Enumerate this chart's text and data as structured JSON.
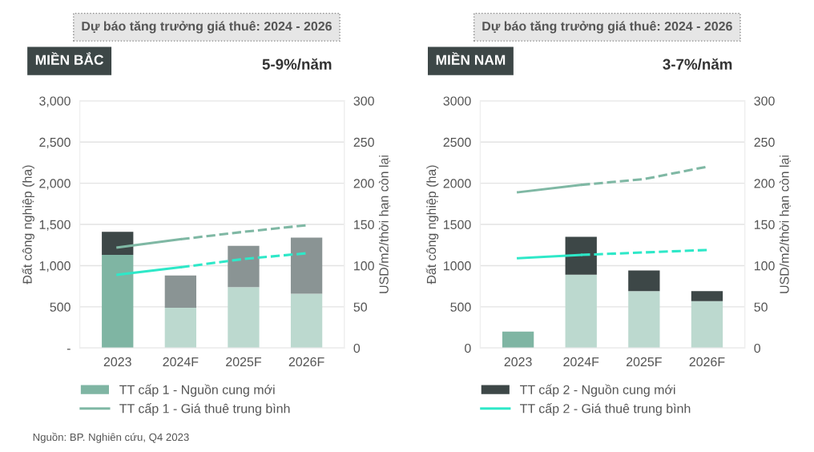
{
  "chart_data": [
    {
      "type": "bar",
      "title": "MIỀN BẮC",
      "stacked": true,
      "ylabel": "Đất công nghiệp (ha)",
      "y2label": "USD/m2/thời hạn còn lại",
      "annotations": [
        "Dự báo tăng trưởng giá thuê: 2024 - 2026",
        "5-9%/năm",
        "Nguồn: BP. Nghiên cứu, Q4 2023"
      ],
      "categories": [
        "2023",
        "2024F",
        "2025F",
        "2026F"
      ],
      "series": [
        {
          "name": "TT cấp 1 - Nguồn cung mới",
          "colors": [
            "#7fb5a3",
            "#bcd9cf",
            "#bcd9cf",
            "#bcd9cf"
          ],
          "values": [
            1130,
            490,
            740,
            660
          ]
        },
        {
          "colors": [
            "#3d4747",
            "#8a9494",
            "#8a9494",
            "#8a9494"
          ],
          "values": [
            280,
            390,
            500,
            680
          ]
        },
        {
          "type": "line",
          "axis": "y2",
          "name": "TT cấp 1 - Giá thuê trung bình",
          "color": "#7fb8a4",
          "line_style": "solid",
          "values": [
            122,
            132,
            null,
            null
          ]
        },
        {
          "type": "line",
          "axis": "y2",
          "color": "#7fb8a4",
          "line_style": "dashed",
          "values": [
            null,
            132,
            141,
            149
          ]
        },
        {
          "type": "line",
          "axis": "y2",
          "color": "#2ee8c8",
          "line_style": "solid",
          "values": [
            89,
            98,
            null,
            null
          ]
        },
        {
          "type": "line",
          "axis": "y2",
          "color": "#2ee8c8",
          "line_style": "dashed",
          "values": [
            null,
            98,
            108,
            115
          ]
        }
      ],
      "ylim": [
        0,
        3000
      ],
      "yticks": [
        {
          "value": 0,
          "label": "-"
        },
        500,
        {
          "value": 1000,
          "label": "1,000"
        },
        {
          "value": 1500,
          "label": "1,500"
        },
        {
          "value": 2000,
          "label": "2,000"
        },
        {
          "value": 2500,
          "label": "2,500"
        },
        {
          "value": 3000,
          "label": "3,000"
        }
      ],
      "y2lim": [
        0,
        300
      ],
      "y2ticks": [
        0,
        50,
        100,
        150,
        200,
        250,
        300
      ],
      "grid": "y",
      "legend": "bottom"
    },
    {
      "type": "bar",
      "title": "MIỀN NAM",
      "stacked": true,
      "ylabel": "Đất công nghiệp (ha)",
      "y2label": "USD/m2/thời hạn còn lại",
      "annotations": [
        "Dự báo tăng trưởng giá thuê: 2024 - 2026",
        "3-7%/năm"
      ],
      "categories": [
        "2023",
        "2024F",
        "2025F",
        "2026F"
      ],
      "series": [
        {
          "colors": [
            "#7fb5a3",
            "#bcd9cf",
            "#bcd9cf",
            "#bcd9cf"
          ],
          "values": [
            200,
            890,
            690,
            570
          ]
        },
        {
          "name": "TT cấp 2 - Nguồn cung mới",
          "colors": [
            "#3d4747",
            "#3d4747",
            "#3d4747",
            "#3d4747"
          ],
          "values": [
            null,
            460,
            250,
            120
          ]
        },
        {
          "type": "line",
          "axis": "y2",
          "color": "#7fb8a4",
          "line_style": "solid",
          "values": [
            189,
            198,
            null,
            null
          ]
        },
        {
          "type": "line",
          "axis": "y2",
          "color": "#7fb8a4",
          "line_style": "dashed",
          "values": [
            null,
            198,
            205,
            220
          ]
        },
        {
          "type": "line",
          "axis": "y2",
          "name": "TT cấp 2 - Giá thuê trung bình",
          "color": "#2ee8c8",
          "line_style": "solid",
          "values": [
            109,
            113,
            null,
            null
          ]
        },
        {
          "type": "line",
          "axis": "y2",
          "color": "#2ee8c8",
          "line_style": "dashed",
          "values": [
            null,
            113,
            116,
            119
          ]
        }
      ],
      "ylim": [
        0,
        3000
      ],
      "yticks": [
        0,
        500,
        1000,
        1500,
        2000,
        2500,
        3000
      ],
      "y2lim": [
        0,
        300
      ],
      "y2ticks": [
        0,
        50,
        100,
        150,
        200,
        250,
        300
      ],
      "grid": "y",
      "legend": "bottom"
    }
  ]
}
